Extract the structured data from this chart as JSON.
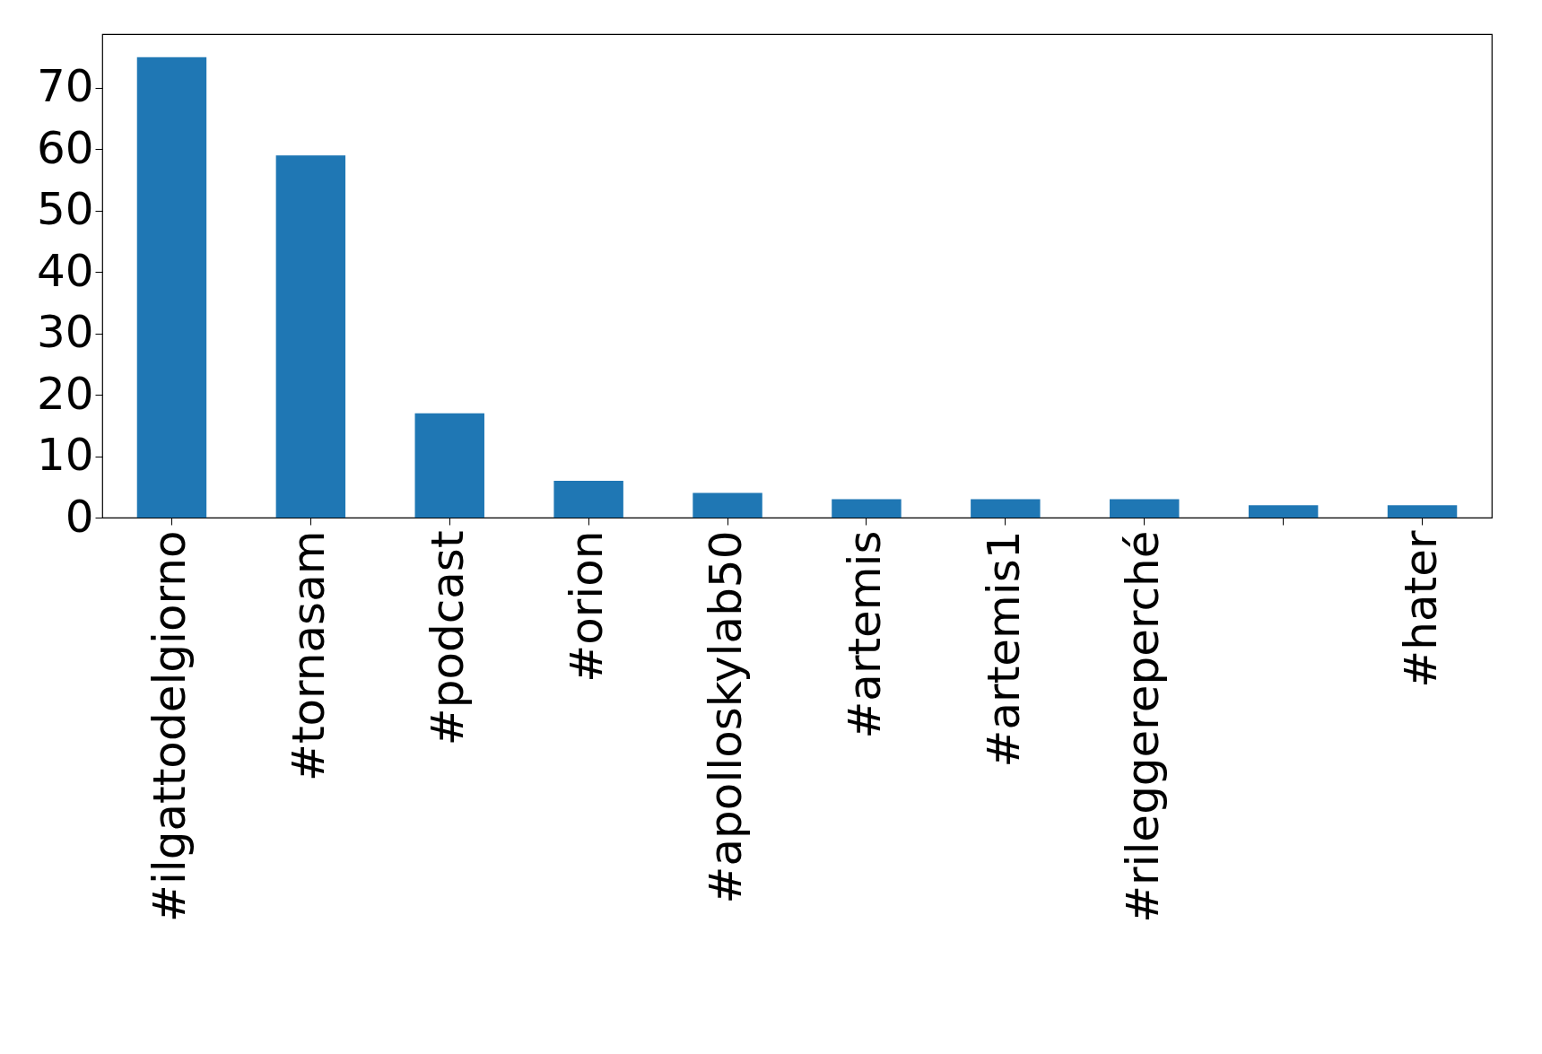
{
  "chart_data": {
    "type": "bar",
    "categories": [
      "#ilgattodelgiorno",
      "#tornasam",
      "#podcast",
      "#orion",
      "#apolloskylab50",
      "#artemis",
      "#artemis1",
      "#rileggereperché",
      null,
      "#hater"
    ],
    "values": [
      75,
      59,
      17,
      6,
      4,
      3,
      3,
      3,
      2,
      2
    ],
    "color": "#1f77b4",
    "ylim": [
      0,
      78.75
    ],
    "yticks": [
      0,
      10,
      20,
      30,
      40,
      50,
      60,
      70
    ],
    "grid": false
  }
}
